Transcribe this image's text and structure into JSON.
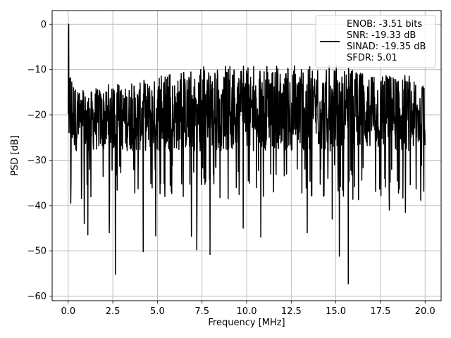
{
  "colors": {
    "line": "#000000",
    "grid": "#b0b0b0",
    "axes": "#000000",
    "background": "#ffffff",
    "legend_border": "#cccccc"
  },
  "chart_data": {
    "type": "line",
    "title": "",
    "xlabel": "Frequency [MHz]",
    "ylabel": "PSD [dB]",
    "xlim": [
      -0.9,
      20.9
    ],
    "ylim": [
      -61,
      3
    ],
    "xticks": [
      0.0,
      2.5,
      5.0,
      7.5,
      10.0,
      12.5,
      15.0,
      17.5,
      20.0
    ],
    "xtick_labels": [
      "0.0",
      "2.5",
      "5.0",
      "7.5",
      "10.0",
      "12.5",
      "15.0",
      "17.5",
      "20.0"
    ],
    "yticks": [
      0,
      -10,
      -20,
      -30,
      -40,
      -50,
      -60
    ],
    "ytick_labels": [
      "0",
      "−10",
      "−20",
      "−30",
      "−40",
      "−50",
      "−60"
    ],
    "grid": true,
    "legend_placement": "upper-right",
    "legend_lines": [
      "ENOB: -3.51 bits",
      "SNR: -19.33 dB",
      "SINAD: -19.35 dB",
      "SFDR: 5.01"
    ],
    "series": [
      {
        "color": "#000000",
        "x_range": [
          0.0,
          20.0
        ],
        "num_points": 1400,
        "typical_band_db": [
          -28,
          -13
        ],
        "peak_db": 0.0,
        "peak_x": 0.03,
        "upper_envelope": {
          "x": [
            0.0,
            0.1,
            0.5,
            1.0,
            2.0,
            3.0,
            4.0,
            5.0,
            6.0,
            7.0,
            7.5,
            8.0,
            9.0,
            10.0,
            11.0,
            12.0,
            13.0,
            14.0,
            15.0,
            16.0,
            17.0,
            18.0,
            19.0,
            20.0
          ],
          "y": [
            0.0,
            -8,
            -14,
            -14,
            -13,
            -13,
            -12,
            -11,
            -11,
            -10,
            -8,
            -10,
            -9,
            -9,
            -9,
            -9,
            -9,
            -9,
            -9,
            -9,
            -10,
            -10,
            -11,
            -13
          ]
        },
        "dips": [
          {
            "x": 0.15,
            "y": -39.5
          },
          {
            "x": 0.9,
            "y": -44.0
          },
          {
            "x": 1.1,
            "y": -46.5
          },
          {
            "x": 2.3,
            "y": -46.0
          },
          {
            "x": 2.65,
            "y": -55.2
          },
          {
            "x": 4.2,
            "y": -50.2
          },
          {
            "x": 4.9,
            "y": -46.7
          },
          {
            "x": 6.9,
            "y": -46.8
          },
          {
            "x": 7.2,
            "y": -49.8
          },
          {
            "x": 7.95,
            "y": -50.8
          },
          {
            "x": 9.8,
            "y": -45.0
          },
          {
            "x": 10.8,
            "y": -47.0
          },
          {
            "x": 13.4,
            "y": -46.0
          },
          {
            "x": 14.8,
            "y": -43.0
          },
          {
            "x": 15.2,
            "y": -51.2
          },
          {
            "x": 15.7,
            "y": -57.3
          },
          {
            "x": 18.0,
            "y": -41.0
          },
          {
            "x": 18.9,
            "y": -41.5
          }
        ]
      }
    ]
  }
}
